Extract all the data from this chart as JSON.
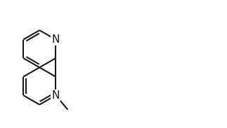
{
  "background": "#ffffff",
  "bond_color": "#1a1a1a",
  "bond_width": 1.5,
  "figsize": [
    3.23,
    1.83
  ],
  "dpi": 100,
  "label_fontsize": 11,
  "label_color": "#1a1a1a"
}
